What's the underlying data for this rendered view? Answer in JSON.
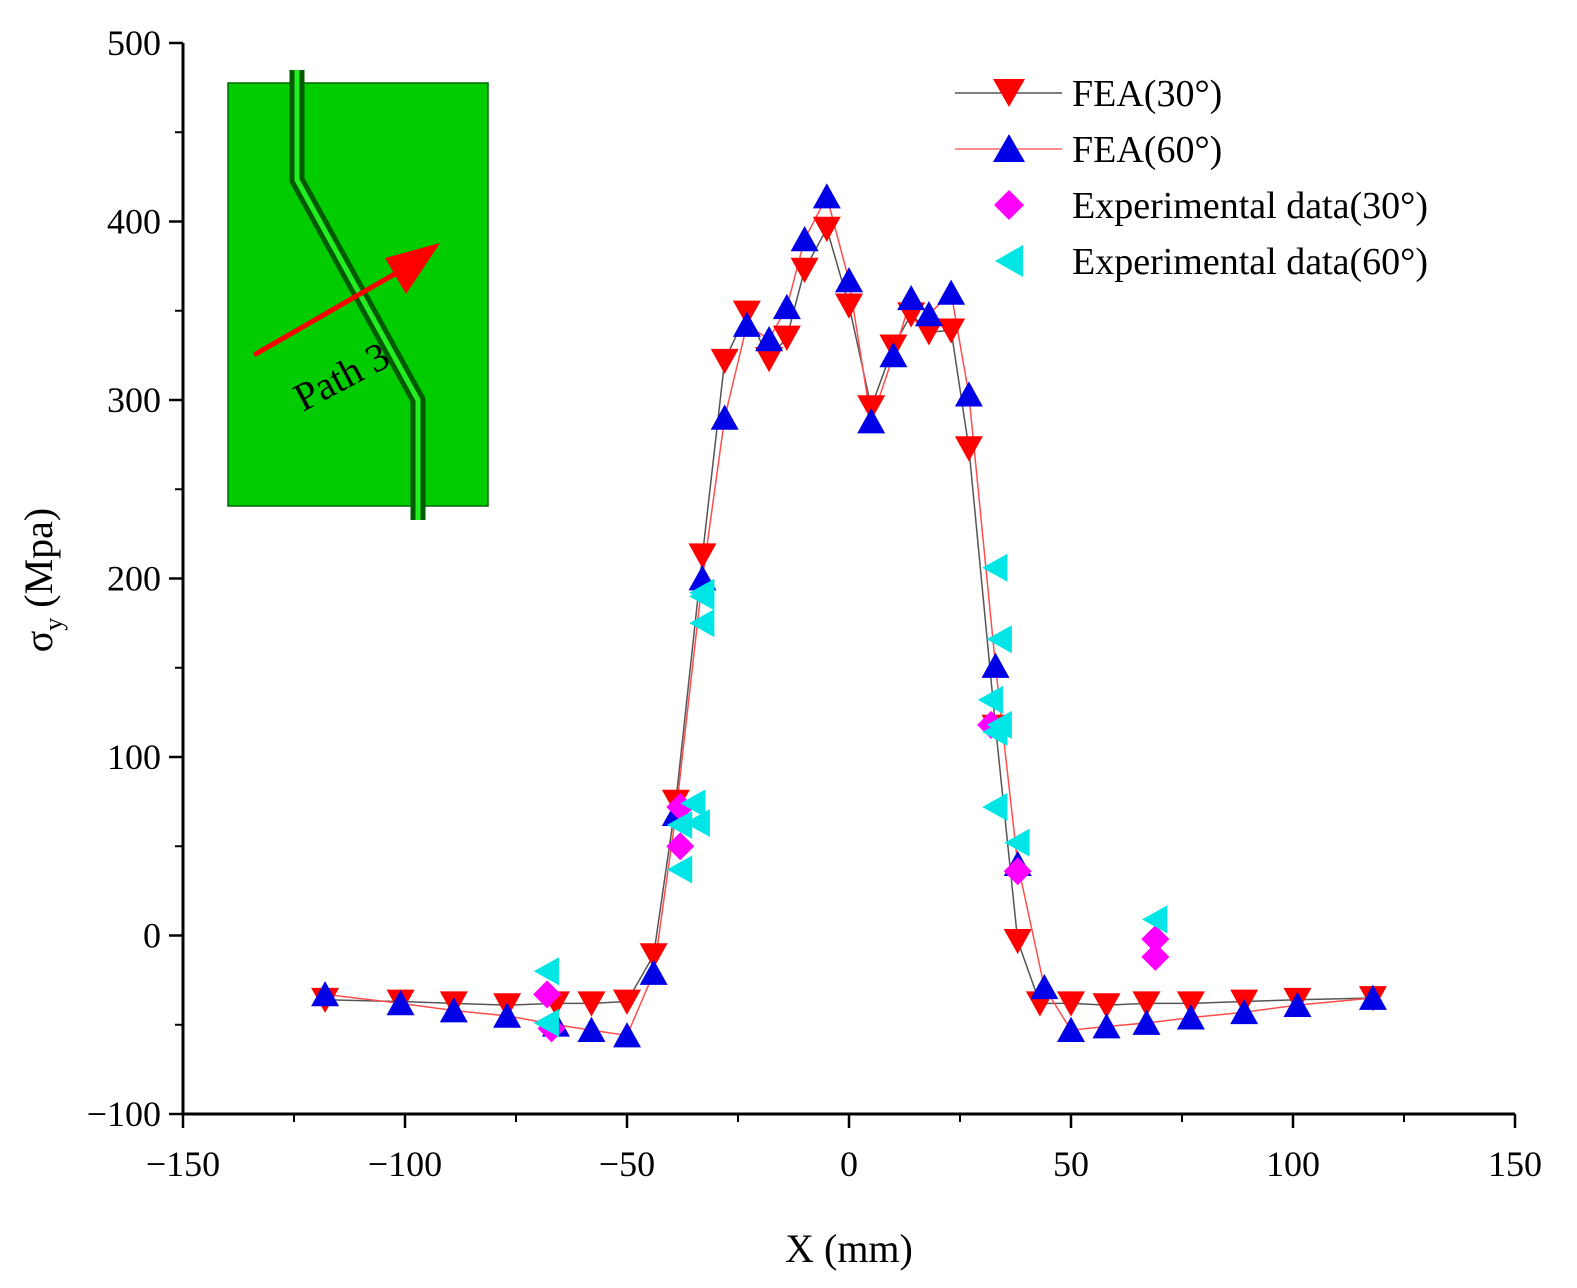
{
  "chart_data": {
    "type": "line",
    "xlabel": "X (mm)",
    "ylabel_main": "σ",
    "ylabel_sub": "y",
    "ylabel_unit": "(Mpa)",
    "xlim": [
      -150,
      150
    ],
    "ylim": [
      -100,
      500
    ],
    "xticks": [
      -150,
      -100,
      -50,
      0,
      50,
      100,
      150
    ],
    "xtick_labels": [
      "−150",
      "−100",
      "−50",
      "0",
      "50",
      "100",
      "150"
    ],
    "yticks": [
      -100,
      0,
      100,
      200,
      300,
      400,
      500
    ],
    "ytick_labels": [
      "−100",
      "0",
      "100",
      "200",
      "300",
      "400",
      "500"
    ],
    "grid": false,
    "legend_position": "top-right",
    "series": [
      {
        "name": "FEA(30°)",
        "marker": "triangle-down",
        "color": "#ff0000",
        "line_color": "#555555",
        "x": [
          -118,
          -101,
          -89,
          -77,
          -66,
          -58,
          -50,
          -44,
          -39,
          -33,
          -28,
          -23,
          -18,
          -14,
          -10,
          -5,
          0,
          5,
          10,
          14,
          18,
          23,
          27,
          33,
          38,
          43,
          50,
          58,
          67,
          77,
          89,
          101,
          118
        ],
        "y": [
          -36,
          -37,
          -38,
          -39,
          -38,
          -38,
          -37,
          -11,
          75,
          213,
          322,
          349,
          323,
          335,
          373,
          396,
          353,
          296,
          330,
          348,
          338,
          339,
          273,
          117,
          -3,
          -38,
          -38,
          -39,
          -38,
          -38,
          -37,
          -36,
          -35
        ]
      },
      {
        "name": "FEA(60°)",
        "marker": "triangle-up",
        "color": "#0000e6",
        "line_color": "#ff4d4d",
        "x": [
          -118,
          -101,
          -89,
          -77,
          -66,
          -58,
          -50,
          -44,
          -39,
          -33,
          -28,
          -23,
          -18,
          -14,
          -10,
          -5,
          0,
          5,
          10,
          14,
          18,
          23,
          27,
          33,
          38,
          44,
          50,
          58,
          67,
          77,
          89,
          101,
          118
        ],
        "y": [
          -33,
          -38,
          -42,
          -45,
          -50,
          -53,
          -56,
          -21,
          68,
          200,
          290,
          342,
          334,
          352,
          390,
          414,
          367,
          288,
          325,
          357,
          348,
          360,
          303,
          151,
          40,
          -29,
          -53,
          -51,
          -49,
          -46,
          -43,
          -39,
          -35
        ]
      },
      {
        "name": "Experimental data(30°)",
        "marker": "diamond",
        "color": "#ff00ff",
        "x": [
          -68,
          -67,
          -38,
          -38,
          32,
          38,
          69,
          69
        ],
        "y": [
          -33,
          -52,
          72,
          50,
          118,
          36,
          -2,
          -12
        ]
      },
      {
        "name": "Experimental data(60°)",
        "marker": "triangle-left",
        "color": "#00e6e6",
        "x": [
          -68,
          -68,
          -38,
          -38,
          -35,
          -34,
          -33,
          -33,
          -33,
          32,
          33,
          33,
          33,
          34,
          34,
          38,
          69
        ],
        "y": [
          -20,
          -49,
          37,
          62,
          74,
          63,
          175,
          190,
          192,
          132,
          114,
          72,
          206,
          166,
          118,
          52,
          9
        ]
      }
    ],
    "inset": {
      "label": "Path 3",
      "plate_color": "#00cc00",
      "arrow_color": "#ff0000"
    }
  }
}
